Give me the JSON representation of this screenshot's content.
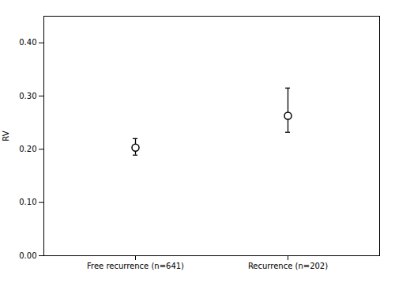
{
  "chart_data": {
    "type": "errorbar",
    "categories": [
      "Free recurrence (n=641)",
      "Recurrence (n=202)"
    ],
    "values": [
      0.203,
      0.263
    ],
    "ci_lower": [
      0.189,
      0.232
    ],
    "ci_upper": [
      0.22,
      0.315
    ],
    "ylabel": "RV",
    "ylim": [
      0.0,
      0.45
    ],
    "yticks": [
      {
        "value": 0.0,
        "label": "0.00"
      },
      {
        "value": 0.1,
        "label": "0.10"
      },
      {
        "value": 0.2,
        "label": "0.20"
      },
      {
        "value": 0.3,
        "label": "0.30"
      },
      {
        "value": 0.4,
        "label": "0.40"
      }
    ],
    "grid": false
  }
}
